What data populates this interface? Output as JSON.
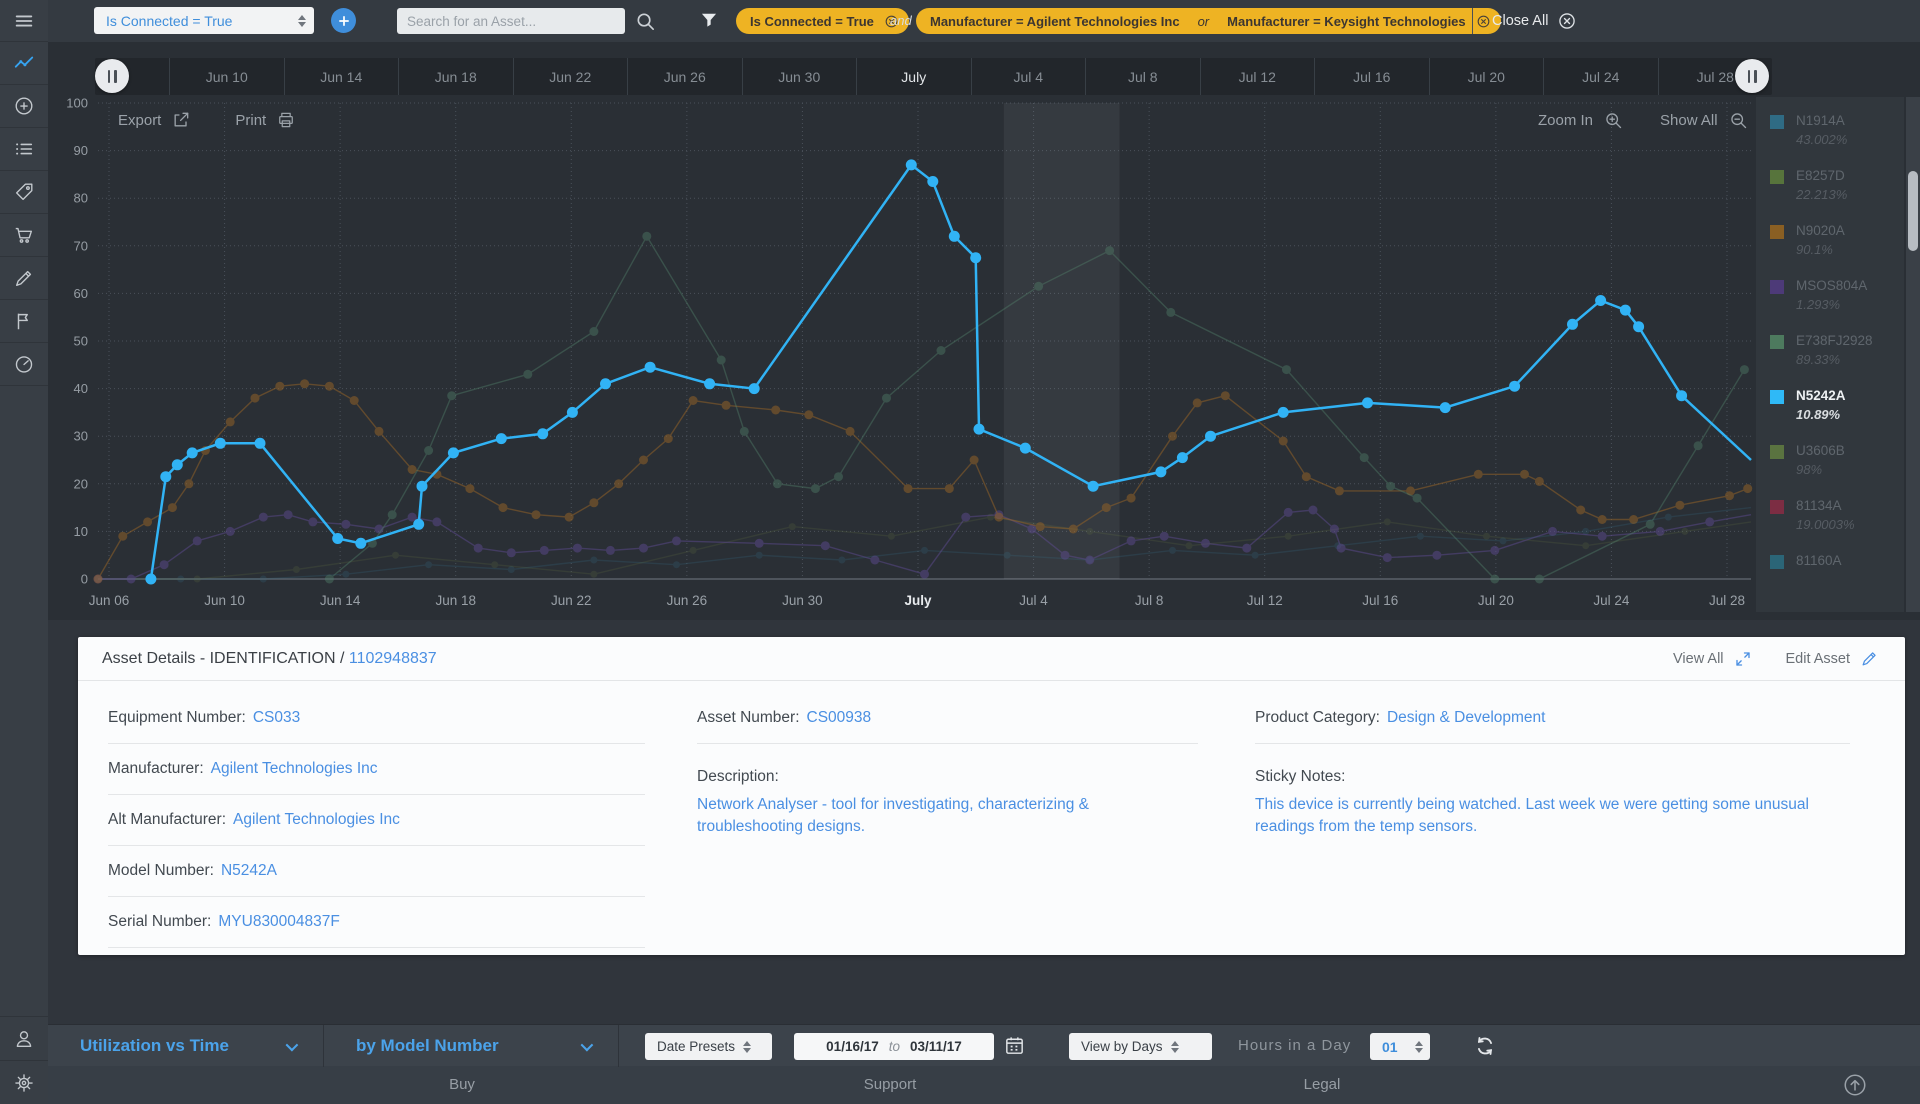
{
  "header": {
    "preset_select": "Is Connected = True",
    "search_placeholder": "Search for an Asset...",
    "filters": {
      "chip1": "Is Connected = True",
      "conjunction": "and",
      "chip2_left": "Manufacturer = Agilent Technologies Inc",
      "chip2_or": "or",
      "chip2_right": "Manufacturer = Keysight Technologies",
      "close_all": "Close All"
    }
  },
  "scrubber": {
    "labels": [
      "",
      "Jun 10",
      "Jun 14",
      "Jun 18",
      "Jun 22",
      "Jun 26",
      "Jun 30",
      "July",
      "Jul 4",
      "Jul 8",
      "Jul 12",
      "Jul 16",
      "Jul 20",
      "Jul 24",
      "Jul 28"
    ],
    "highlight": "July"
  },
  "chart": {
    "toolbar": {
      "export": "Export",
      "print": "Print",
      "zoom_in": "Zoom In",
      "show_all": "Show All"
    }
  },
  "chart_data": {
    "type": "line",
    "title": "Utilization vs Time",
    "ylim": [
      0,
      100
    ],
    "y_ticks": [
      0,
      10,
      20,
      30,
      40,
      50,
      60,
      70,
      80,
      90,
      100
    ],
    "x_ticks": [
      "Jun 06",
      "Jun 10",
      "Jun 14",
      "Jun 18",
      "Jun 22",
      "Jun 26",
      "Jun 30",
      "July",
      "Jul 4",
      "Jul 8",
      "Jul 12",
      "Jul 16",
      "Jul 20",
      "Jul 24",
      "Jul 28"
    ],
    "x_tick_highlight": "July",
    "grid": "dotted",
    "legend_position": "right",
    "highlight_band": {
      "from_frac": 0.548,
      "to_frac": 0.618
    },
    "series": [
      {
        "name": "N1914A",
        "color": "#35708c",
        "opacity": 0.22,
        "width": 1.4,
        "dot": 3.5,
        "points": [
          [
            0,
            0
          ],
          [
            0.05,
            0
          ],
          [
            0.1,
            0
          ],
          [
            0.15,
            1
          ],
          [
            0.2,
            3
          ],
          [
            0.25,
            2
          ],
          [
            0.3,
            4
          ],
          [
            0.35,
            3
          ],
          [
            0.4,
            5
          ],
          [
            0.45,
            4
          ],
          [
            0.5,
            6
          ],
          [
            0.55,
            5
          ],
          [
            0.6,
            4
          ],
          [
            0.65,
            6
          ],
          [
            0.7,
            5
          ],
          [
            0.75,
            7
          ],
          [
            0.8,
            9
          ],
          [
            0.85,
            8
          ],
          [
            0.9,
            10
          ],
          [
            0.95,
            13
          ],
          [
            1,
            15
          ]
        ]
      },
      {
        "name": "E8257D",
        "color": "#6d7d45",
        "opacity": 0.18,
        "width": 1.4,
        "dot": 3.5,
        "points": [
          [
            0,
            0
          ],
          [
            0.06,
            0
          ],
          [
            0.12,
            2
          ],
          [
            0.18,
            5
          ],
          [
            0.24,
            3
          ],
          [
            0.3,
            1
          ],
          [
            0.36,
            6
          ],
          [
            0.42,
            11
          ],
          [
            0.48,
            9
          ],
          [
            0.54,
            13
          ],
          [
            0.6,
            10
          ],
          [
            0.66,
            7
          ],
          [
            0.72,
            9
          ],
          [
            0.78,
            12
          ],
          [
            0.84,
            9
          ],
          [
            0.9,
            7
          ],
          [
            0.96,
            10
          ],
          [
            1,
            12
          ]
        ]
      },
      {
        "name": "MSOS804A",
        "color": "#5d4a8f",
        "opacity": 0.5,
        "width": 1.4,
        "dot": 4.5,
        "points": [
          [
            0,
            0
          ],
          [
            0.02,
            0
          ],
          [
            0.04,
            3
          ],
          [
            0.06,
            8
          ],
          [
            0.08,
            10
          ],
          [
            0.1,
            13
          ],
          [
            0.115,
            13.5
          ],
          [
            0.13,
            12
          ],
          [
            0.15,
            11.5
          ],
          [
            0.17,
            10.5
          ],
          [
            0.19,
            13
          ],
          [
            0.205,
            12
          ],
          [
            0.23,
            6.5
          ],
          [
            0.25,
            5.5
          ],
          [
            0.27,
            6
          ],
          [
            0.29,
            6.5
          ],
          [
            0.31,
            6
          ],
          [
            0.33,
            6.5
          ],
          [
            0.35,
            8
          ],
          [
            0.4,
            7.5
          ],
          [
            0.44,
            7
          ],
          [
            0.47,
            4
          ],
          [
            0.5,
            1
          ],
          [
            0.525,
            13
          ],
          [
            0.545,
            13.5
          ],
          [
            0.565,
            10.5
          ],
          [
            0.585,
            5
          ],
          [
            0.6,
            4
          ],
          [
            0.625,
            8
          ],
          [
            0.645,
            9
          ],
          [
            0.67,
            7.5
          ],
          [
            0.695,
            6.5
          ],
          [
            0.72,
            14
          ],
          [
            0.735,
            14.5
          ],
          [
            0.748,
            10.5
          ],
          [
            0.752,
            6.5
          ],
          [
            0.78,
            4.5
          ],
          [
            0.81,
            5
          ],
          [
            0.845,
            6
          ],
          [
            0.88,
            10
          ],
          [
            0.91,
            9
          ],
          [
            0.945,
            10
          ],
          [
            0.975,
            12
          ],
          [
            1,
            13.5
          ]
        ]
      },
      {
        "name": "N9020A",
        "color": "#9a6526",
        "opacity": 0.5,
        "width": 1.4,
        "dot": 4.5,
        "points": [
          [
            0,
            0
          ],
          [
            0.015,
            9
          ],
          [
            0.03,
            12
          ],
          [
            0.045,
            15
          ],
          [
            0.055,
            20
          ],
          [
            0.065,
            27
          ],
          [
            0.08,
            33
          ],
          [
            0.095,
            38
          ],
          [
            0.11,
            40.5
          ],
          [
            0.125,
            41
          ],
          [
            0.14,
            40.5
          ],
          [
            0.155,
            37.5
          ],
          [
            0.17,
            31
          ],
          [
            0.19,
            23
          ],
          [
            0.205,
            22
          ],
          [
            0.225,
            19
          ],
          [
            0.245,
            15
          ],
          [
            0.265,
            13.5
          ],
          [
            0.285,
            13
          ],
          [
            0.3,
            16
          ],
          [
            0.315,
            20
          ],
          [
            0.33,
            25
          ],
          [
            0.345,
            29.5
          ],
          [
            0.36,
            37.5
          ],
          [
            0.38,
            36.5
          ],
          [
            0.41,
            35.5
          ],
          [
            0.43,
            34.5
          ],
          [
            0.455,
            31
          ],
          [
            0.49,
            19
          ],
          [
            0.515,
            19
          ],
          [
            0.53,
            25
          ],
          [
            0.545,
            13
          ],
          [
            0.57,
            11
          ],
          [
            0.59,
            10.5
          ],
          [
            0.61,
            15
          ],
          [
            0.625,
            17
          ],
          [
            0.65,
            30
          ],
          [
            0.665,
            37
          ],
          [
            0.682,
            38.5
          ],
          [
            0.717,
            29
          ],
          [
            0.731,
            21.5
          ],
          [
            0.751,
            18.5
          ],
          [
            0.794,
            18.5
          ],
          [
            0.835,
            22
          ],
          [
            0.863,
            22
          ],
          [
            0.872,
            20.5
          ],
          [
            0.897,
            14.5
          ],
          [
            0.91,
            12.5
          ],
          [
            0.929,
            12.5
          ],
          [
            0.957,
            15.5
          ],
          [
            0.987,
            17.5
          ],
          [
            0.998,
            19
          ]
        ]
      },
      {
        "name": "E738FJ2928",
        "color": "#52806a",
        "opacity": 0.42,
        "width": 1.4,
        "dot": 4.5,
        "points": [
          [
            0.14,
            0
          ],
          [
            0.166,
            7.5
          ],
          [
            0.178,
            13.5
          ],
          [
            0.2,
            27
          ],
          [
            0.214,
            38.5
          ],
          [
            0.26,
            43
          ],
          [
            0.3,
            52
          ],
          [
            0.332,
            72
          ],
          [
            0.377,
            46
          ],
          [
            0.391,
            31
          ],
          [
            0.411,
            20
          ],
          [
            0.434,
            19
          ],
          [
            0.448,
            21.5
          ],
          [
            0.477,
            38
          ],
          [
            0.51,
            48
          ],
          [
            0.569,
            61.5
          ],
          [
            0.612,
            69
          ],
          [
            0.649,
            56
          ],
          [
            0.719,
            44
          ],
          [
            0.766,
            25.5
          ],
          [
            0.782,
            19.5
          ],
          [
            0.798,
            17
          ],
          [
            0.845,
            0
          ],
          [
            0.872,
            0
          ],
          [
            0.939,
            11.5
          ],
          [
            0.968,
            28
          ],
          [
            0.996,
            44
          ]
        ]
      },
      {
        "name": "N5242A",
        "color": "#31b3f5",
        "opacity": 1,
        "width": 2.5,
        "dot": 5.5,
        "points": [
          [
            0.032,
            0
          ],
          [
            0.041,
            21.5
          ],
          [
            0.048,
            24
          ],
          [
            0.057,
            26.5
          ],
          [
            0.074,
            28.5
          ],
          [
            0.098,
            28.5
          ],
          [
            0.145,
            8.5
          ],
          [
            0.159,
            7.5
          ],
          [
            0.194,
            11.5
          ],
          [
            0.196,
            19.5
          ],
          [
            0.215,
            26.5
          ],
          [
            0.244,
            29.5
          ],
          [
            0.269,
            30.5
          ],
          [
            0.287,
            35
          ],
          [
            0.307,
            41
          ],
          [
            0.334,
            44.5
          ],
          [
            0.37,
            41
          ],
          [
            0.397,
            40
          ],
          [
            0.492,
            87
          ],
          [
            0.505,
            83.5
          ],
          [
            0.518,
            72
          ],
          [
            0.531,
            67.5
          ],
          [
            0.533,
            31.5
          ],
          [
            0.561,
            27.5
          ],
          [
            0.602,
            19.5
          ],
          [
            0.643,
            22.5
          ],
          [
            0.656,
            25.5
          ],
          [
            0.673,
            30
          ],
          [
            0.717,
            35
          ],
          [
            0.768,
            37
          ],
          [
            0.815,
            36
          ],
          [
            0.857,
            40.5
          ],
          [
            0.892,
            53.5
          ],
          [
            0.909,
            58.5
          ],
          [
            0.924,
            56.5
          ],
          [
            0.932,
            53
          ],
          [
            0.958,
            38.5
          ],
          [
            1,
            25
          ]
        ]
      }
    ]
  },
  "legend": {
    "items": [
      {
        "model": "N1914A",
        "value": "43.002%",
        "color": "#2f6b84",
        "active": false
      },
      {
        "model": "E8257D",
        "value": "22.213%",
        "color": "#57743c",
        "active": false
      },
      {
        "model": "N9020A",
        "value": "90.1%",
        "color": "#8a5f23",
        "active": false
      },
      {
        "model": "MSOS804A",
        "value": "1.293%",
        "color": "#4d3a78",
        "active": false
      },
      {
        "model": "E738FJ2928",
        "value": "89.33%",
        "color": "#4d7a5e",
        "active": false
      },
      {
        "model": "N5242A",
        "value": "10.89%",
        "color": "#2fb9f7",
        "active": true
      },
      {
        "model": "U3606B",
        "value": "98%",
        "color": "#5a7340",
        "active": false
      },
      {
        "model": "81134A",
        "value": "19.0003%",
        "color": "#7c2d43",
        "active": false
      },
      {
        "model": "81160A",
        "value": "",
        "color": "#2b6577",
        "active": false
      }
    ]
  },
  "asset_panel": {
    "title": "Asset Details - IDENTIFICATION /",
    "asset_id": "1102948837",
    "view_all": "View All",
    "edit_asset": "Edit Asset",
    "columns": [
      {
        "fields": [
          {
            "label": "Equipment Number:",
            "value": "CS033"
          },
          {
            "label": "Manufacturer:",
            "value": "Agilent Technologies Inc"
          },
          {
            "label": "Alt Manufacturer:",
            "value": "Agilent Technologies Inc"
          },
          {
            "label": "Model Number:",
            "value": "N5242A"
          },
          {
            "label": "Serial Number:",
            "value": "MYU830004837F"
          }
        ]
      },
      {
        "fields": [
          {
            "label": "Asset Number:",
            "value": "CS00938"
          },
          {
            "label": "Description:",
            "value": "Network Analyser -  tool for investigating, characterizing & troubleshooting designs.",
            "block": true
          }
        ]
      },
      {
        "fields": [
          {
            "label": "Product Category:",
            "value": "Design & Development"
          },
          {
            "label": "Sticky Notes:",
            "value": "This device is currently being watched. Last week we were getting some unusual readings from the temp sensors.",
            "block": true
          }
        ]
      }
    ]
  },
  "toolbar": {
    "view_mode": "Utilization vs Time",
    "group_by": "by Model Number",
    "date_presets": "Date Presets",
    "date_from": "01/16/17",
    "date_to_word": "to",
    "date_to": "03/11/17",
    "view_by": "View by Days",
    "hours_label": "Hours in a Day",
    "hours_value": "01"
  },
  "footer": {
    "links": [
      "Buy",
      "Support",
      "Legal"
    ]
  }
}
